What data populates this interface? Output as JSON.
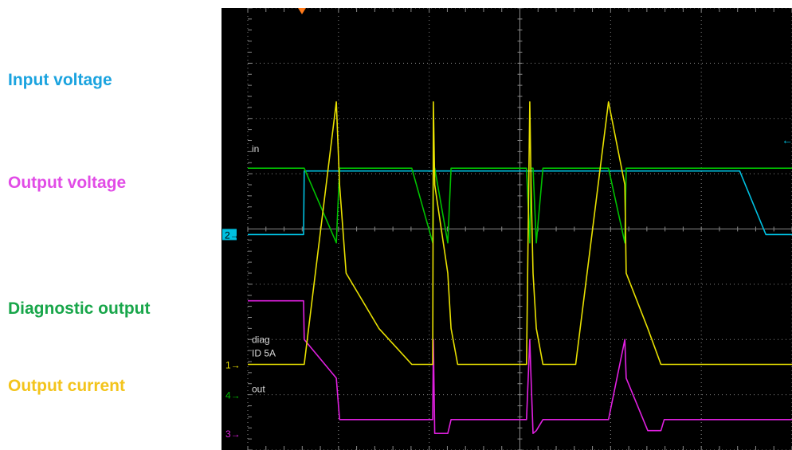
{
  "side_labels": {
    "input": "Input voltage",
    "output": "Output voltage",
    "diag": "Diagnostic output",
    "current": "Output current"
  },
  "colors": {
    "input": "#00c0e0",
    "output": "#e020e0",
    "diag": "#00c000",
    "current": "#e8e000",
    "input_label": "#1aa3df",
    "output_label": "#e14ce6",
    "diag_label": "#18a64a",
    "current_label": "#f3c41c",
    "grid": "#8a8a8a",
    "trigger": "#ff7a1a"
  },
  "chart_data": {
    "type": "line",
    "x_divisions": 10,
    "y_divisions": 8,
    "grid": true,
    "x": [
      0.0,
      0.85,
      0.86,
      1.35,
      1.4,
      1.5,
      2.0,
      2.5,
      2.82,
      2.83,
      2.85,
      3.05,
      3.1,
      3.2,
      3.7,
      4.25,
      4.3,
      4.32,
      4.35,
      4.4,
      4.5,
      5.0,
      5.5,
      5.75,
      5.77,
      6.1,
      6.3,
      6.35,
      6.45,
      6.95,
      7.5,
      7.9,
      10.0
    ],
    "series": [
      {
        "name": "in",
        "channel_marker": "2",
        "values": [
          3.9,
          3.9,
          5.05,
          5.05,
          5.05,
          5.05,
          5.05,
          5.05,
          5.05,
          5.05,
          5.05,
          5.05,
          5.05,
          5.05,
          5.05,
          5.05,
          5.05,
          5.05,
          5.05,
          5.05,
          5.05,
          5.05,
          5.05,
          5.05,
          5.05,
          5.05,
          5.05,
          5.05,
          5.05,
          5.05,
          5.05,
          3.9,
          3.9
        ]
      },
      {
        "name": "out",
        "channel_marker": "3",
        "values": [
          2.7,
          2.7,
          2.0,
          1.3,
          0.55,
          0.55,
          0.55,
          0.55,
          0.55,
          2.0,
          0.3,
          0.3,
          0.55,
          0.55,
          0.55,
          0.55,
          2.0,
          1.3,
          0.3,
          0.35,
          0.55,
          0.55,
          0.55,
          2.0,
          1.3,
          0.35,
          0.35,
          0.55,
          0.55,
          0.55,
          0.55,
          0.55,
          0.55
        ]
      },
      {
        "name": "diag",
        "channel_marker": "4",
        "values": [
          5.1,
          5.1,
          5.1,
          3.75,
          5.1,
          5.1,
          5.1,
          5.1,
          3.75,
          5.1,
          5.1,
          3.75,
          5.1,
          5.1,
          5.1,
          5.1,
          3.75,
          5.1,
          5.1,
          3.75,
          5.1,
          5.1,
          5.1,
          3.75,
          5.1,
          5.1,
          5.1,
          5.1,
          5.1,
          5.1,
          5.1,
          5.1,
          5.1
        ]
      },
      {
        "name": "ID 5A",
        "channel_marker": "1",
        "values": [
          1.55,
          1.55,
          1.55,
          6.3,
          4.8,
          3.2,
          2.2,
          1.55,
          1.55,
          6.3,
          4.8,
          3.2,
          2.2,
          1.55,
          1.55,
          1.55,
          6.3,
          4.8,
          3.2,
          2.2,
          1.55,
          1.55,
          6.3,
          4.8,
          3.2,
          2.2,
          1.55,
          1.55,
          1.55,
          1.55,
          1.55,
          1.55,
          1.55
        ]
      }
    ]
  }
}
